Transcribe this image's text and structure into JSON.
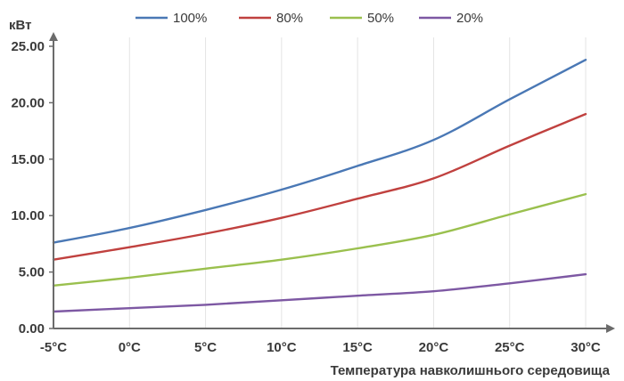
{
  "chart_data": {
    "type": "line",
    "title": "",
    "ylabel": "кВт",
    "xlabel": "Температура навколишнього середовища",
    "categories": [
      "-5°C",
      "0°C",
      "5°C",
      "10°C",
      "15°C",
      "20°C",
      "25°C",
      "30°C"
    ],
    "x": [
      -5,
      0,
      5,
      10,
      15,
      20,
      25,
      30
    ],
    "ylim": [
      0,
      25
    ],
    "yticks": [
      "0.00",
      "5.00",
      "10.00",
      "15.00",
      "20.00",
      "25.00"
    ],
    "ytick_values": [
      0,
      5,
      10,
      15,
      20,
      25
    ],
    "grid": "vertical",
    "legend_position": "top",
    "series": [
      {
        "name": "100%",
        "color": "#4a78b5",
        "values": [
          7.6,
          8.9,
          10.5,
          12.3,
          14.4,
          16.7,
          20.3,
          23.8
        ]
      },
      {
        "name": "80%",
        "color": "#c0413f",
        "values": [
          6.1,
          7.2,
          8.4,
          9.8,
          11.5,
          13.3,
          16.2,
          19.0
        ]
      },
      {
        "name": "50%",
        "color": "#9ac04e",
        "values": [
          3.8,
          4.5,
          5.3,
          6.1,
          7.1,
          8.3,
          10.1,
          11.9
        ]
      },
      {
        "name": "20%",
        "color": "#7d58a3",
        "values": [
          1.5,
          1.8,
          2.1,
          2.5,
          2.9,
          3.3,
          4.0,
          4.8
        ]
      }
    ]
  }
}
